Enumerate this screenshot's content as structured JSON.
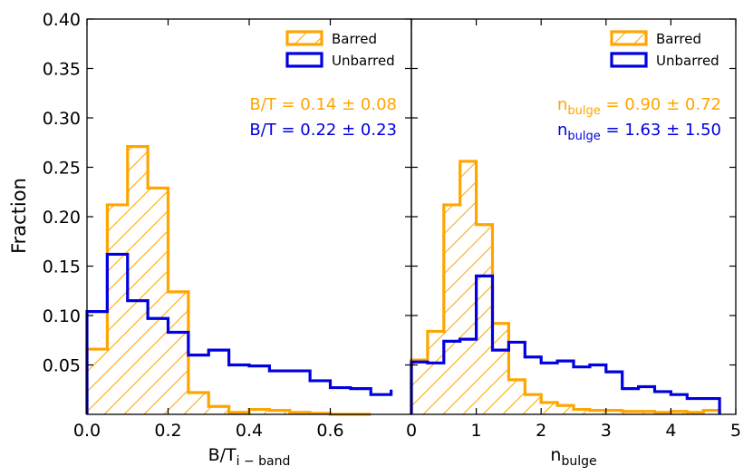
{
  "figure": {
    "ylabel": "Fraction",
    "colors": {
      "barred": "#FFA500",
      "unbarred": "#0000E0",
      "axis": "#000000"
    }
  },
  "chart_data": [
    {
      "type": "histogram",
      "panel": "left",
      "xlabel_main": "B/T",
      "xlabel_sub": "i − band",
      "xlim": [
        0.0,
        0.8
      ],
      "ylim": [
        0.0,
        0.4
      ],
      "xticks": [
        0.0,
        0.2,
        0.4,
        0.6
      ],
      "xtick_labels": [
        "0.0",
        "0.2",
        "0.4",
        "0.6"
      ],
      "yticks": [
        0.05,
        0.1,
        0.15,
        0.2,
        0.25,
        0.3,
        0.35,
        0.4
      ],
      "ytick_labels": [
        "0.05",
        "0.10",
        "0.15",
        "0.20",
        "0.25",
        "0.30",
        "0.35",
        "0.40"
      ],
      "bin_edges": [
        0.0,
        0.05,
        0.1,
        0.15,
        0.2,
        0.25,
        0.3,
        0.35,
        0.4,
        0.45,
        0.5,
        0.55,
        0.6,
        0.65,
        0.7,
        0.75
      ],
      "series": [
        {
          "name": "Barred",
          "style": "hatched",
          "values": [
            0.066,
            0.212,
            0.271,
            0.229,
            0.124,
            0.022,
            0.008,
            0.002,
            0.005,
            0.004,
            0.002,
            0.001,
            0.0,
            0.0
          ]
        },
        {
          "name": "Unbarred",
          "style": "line",
          "values": [
            0.104,
            0.162,
            0.115,
            0.097,
            0.083,
            0.06,
            0.065,
            0.05,
            0.049,
            0.044,
            0.044,
            0.034,
            0.027,
            0.026,
            0.02,
            0.025
          ]
        }
      ],
      "legend": {
        "position": "top-right",
        "entries": [
          "Barred",
          "Unbarred"
        ]
      },
      "annotations": [
        {
          "series": "Barred",
          "main": "B/T",
          "sub": "",
          "rest": " = 0.14 ± 0.08"
        },
        {
          "series": "Unbarred",
          "main": "B/T",
          "sub": "",
          "rest": " = 0.22 ± 0.23"
        }
      ]
    },
    {
      "type": "histogram",
      "panel": "right",
      "xlabel_main": "n",
      "xlabel_sub": "bulge",
      "xlim": [
        0,
        5
      ],
      "ylim": [
        0.0,
        0.4
      ],
      "xticks": [
        0,
        1,
        2,
        3,
        4,
        5
      ],
      "xtick_labels": [
        "0",
        "1",
        "2",
        "3",
        "4",
        "5"
      ],
      "bin_edges": [
        0.0,
        0.25,
        0.5,
        0.75,
        1.0,
        1.25,
        1.5,
        1.75,
        2.0,
        2.25,
        2.5,
        2.75,
        3.0,
        3.25,
        3.5,
        3.75,
        4.0,
        4.25,
        4.5,
        4.75
      ],
      "series": [
        {
          "name": "Barred",
          "style": "hatched",
          "values": [
            0.055,
            0.084,
            0.212,
            0.256,
            0.192,
            0.092,
            0.035,
            0.02,
            0.012,
            0.009,
            0.005,
            0.004,
            0.004,
            0.003,
            0.003,
            0.002,
            0.003,
            0.002,
            0.004
          ]
        },
        {
          "name": "Unbarred",
          "style": "line",
          "values": [
            0.053,
            0.052,
            0.074,
            0.076,
            0.14,
            0.065,
            0.073,
            0.058,
            0.052,
            0.054,
            0.048,
            0.05,
            0.043,
            0.026,
            0.028,
            0.023,
            0.02,
            0.016,
            0.016
          ]
        }
      ],
      "legend": {
        "position": "top-right",
        "entries": [
          "Barred",
          "Unbarred"
        ]
      },
      "annotations": [
        {
          "series": "Barred",
          "main": "n",
          "sub": "bulge",
          "rest": " = 0.90 ± 0.72"
        },
        {
          "series": "Unbarred",
          "main": "n",
          "sub": "bulge",
          "rest": " = 1.63 ± 1.50"
        }
      ]
    }
  ]
}
